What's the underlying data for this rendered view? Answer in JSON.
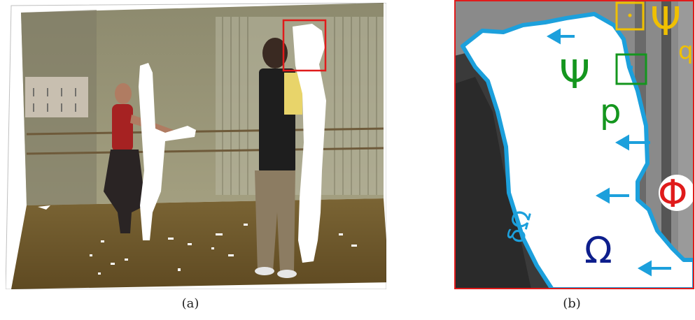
{
  "figure": {
    "panel_a": {
      "caption": "(a)"
    },
    "panel_b": {
      "caption": "(b)",
      "labels": {
        "psi_q": "Ψ",
        "psi_q_sub": "q",
        "psi_p": "Ψ",
        "psi_p_sub": "p",
        "phi": "Φ",
        "omega": "Ω",
        "delta_omega": "δΩ"
      }
    },
    "colors": {
      "boundary": "#1ca0dc",
      "highlight_box": "#e01b1b",
      "psi_q": "#f0c000",
      "psi_p": "#14961e",
      "phi": "#e01b1b",
      "omega": "#0d1e8c"
    }
  }
}
